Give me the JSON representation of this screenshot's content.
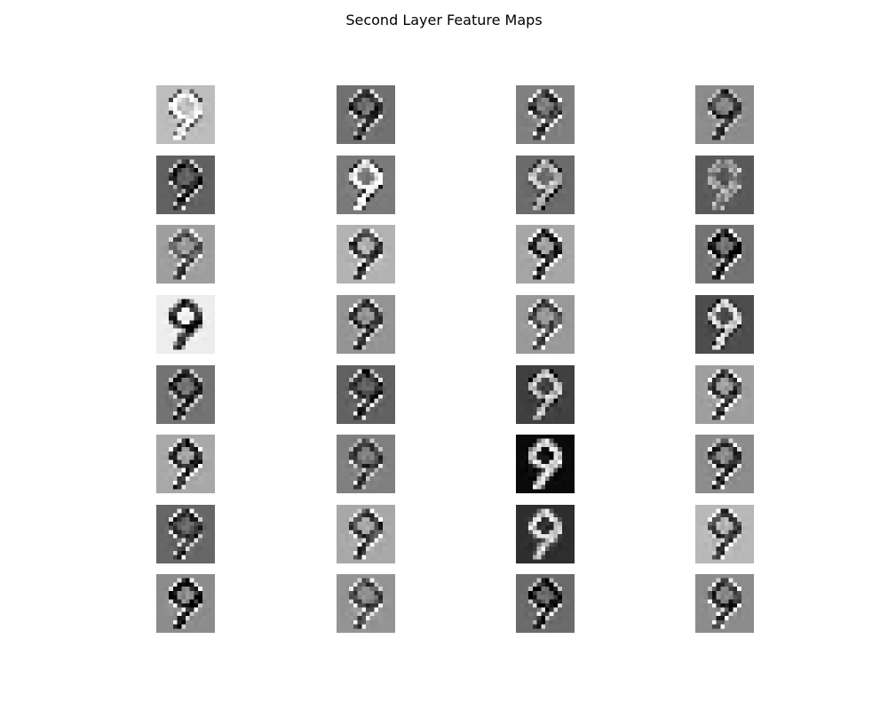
{
  "figure": {
    "title": "Second Layer Feature Maps",
    "grid": {
      "rows": 8,
      "cols": 4
    },
    "colormap": "grayscale",
    "subject": "digit 9",
    "axes_visible": false
  },
  "maps": [
    {
      "row": 0,
      "col": 0,
      "bg": 0.74,
      "stroke": 0.96,
      "edge": 0.35
    },
    {
      "row": 0,
      "col": 1,
      "bg": 0.44,
      "stroke": 0.15,
      "edge": 0.85
    },
    {
      "row": 0,
      "col": 2,
      "bg": 0.5,
      "stroke": 0.25,
      "edge": 0.9
    },
    {
      "row": 0,
      "col": 3,
      "bg": 0.55,
      "stroke": 0.2,
      "edge": 0.75
    },
    {
      "row": 1,
      "col": 0,
      "bg": 0.38,
      "stroke": 0.15,
      "edge": 0.8
    },
    {
      "row": 1,
      "col": 1,
      "bg": 0.48,
      "stroke": 0.95,
      "edge": 0.2
    },
    {
      "row": 1,
      "col": 2,
      "bg": 0.42,
      "stroke": 0.75,
      "edge": 0.15
    },
    {
      "row": 1,
      "col": 3,
      "bg": 0.35,
      "stroke": 0.55,
      "edge": 0.75
    },
    {
      "row": 2,
      "col": 0,
      "bg": 0.62,
      "stroke": 0.3,
      "edge": 0.9
    },
    {
      "row": 2,
      "col": 1,
      "bg": 0.7,
      "stroke": 0.2,
      "edge": 0.95
    },
    {
      "row": 2,
      "col": 2,
      "bg": 0.65,
      "stroke": 0.1,
      "edge": 0.95
    },
    {
      "row": 2,
      "col": 3,
      "bg": 0.45,
      "stroke": 0.1,
      "edge": 0.9
    },
    {
      "row": 3,
      "col": 0,
      "bg": 0.93,
      "stroke": 0.12,
      "edge": 0.55
    },
    {
      "row": 3,
      "col": 1,
      "bg": 0.58,
      "stroke": 0.18,
      "edge": 0.85
    },
    {
      "row": 3,
      "col": 2,
      "bg": 0.6,
      "stroke": 0.3,
      "edge": 0.95
    },
    {
      "row": 3,
      "col": 3,
      "bg": 0.3,
      "stroke": 0.8,
      "edge": 0.1
    },
    {
      "row": 4,
      "col": 0,
      "bg": 0.45,
      "stroke": 0.2,
      "edge": 0.75
    },
    {
      "row": 4,
      "col": 1,
      "bg": 0.38,
      "stroke": 0.15,
      "edge": 0.85
    },
    {
      "row": 4,
      "col": 2,
      "bg": 0.25,
      "stroke": 0.75,
      "edge": 0.1
    },
    {
      "row": 4,
      "col": 3,
      "bg": 0.62,
      "stroke": 0.2,
      "edge": 0.95
    },
    {
      "row": 5,
      "col": 0,
      "bg": 0.66,
      "stroke": 0.15,
      "edge": 0.95
    },
    {
      "row": 5,
      "col": 1,
      "bg": 0.5,
      "stroke": 0.25,
      "edge": 0.8
    },
    {
      "row": 5,
      "col": 2,
      "bg": 0.04,
      "stroke": 0.85,
      "edge": 0.4
    },
    {
      "row": 5,
      "col": 3,
      "bg": 0.55,
      "stroke": 0.2,
      "edge": 0.9
    },
    {
      "row": 6,
      "col": 0,
      "bg": 0.4,
      "stroke": 0.15,
      "edge": 0.9
    },
    {
      "row": 6,
      "col": 1,
      "bg": 0.66,
      "stroke": 0.25,
      "edge": 0.95
    },
    {
      "row": 6,
      "col": 2,
      "bg": 0.18,
      "stroke": 0.8,
      "edge": 0.35
    },
    {
      "row": 6,
      "col": 3,
      "bg": 0.72,
      "stroke": 0.25,
      "edge": 0.9
    },
    {
      "row": 7,
      "col": 0,
      "bg": 0.55,
      "stroke": 0.1,
      "edge": 0.9
    },
    {
      "row": 7,
      "col": 1,
      "bg": 0.58,
      "stroke": 0.3,
      "edge": 0.9
    },
    {
      "row": 7,
      "col": 2,
      "bg": 0.42,
      "stroke": 0.1,
      "edge": 0.85
    },
    {
      "row": 7,
      "col": 3,
      "bg": 0.55,
      "stroke": 0.2,
      "edge": 0.9
    }
  ]
}
